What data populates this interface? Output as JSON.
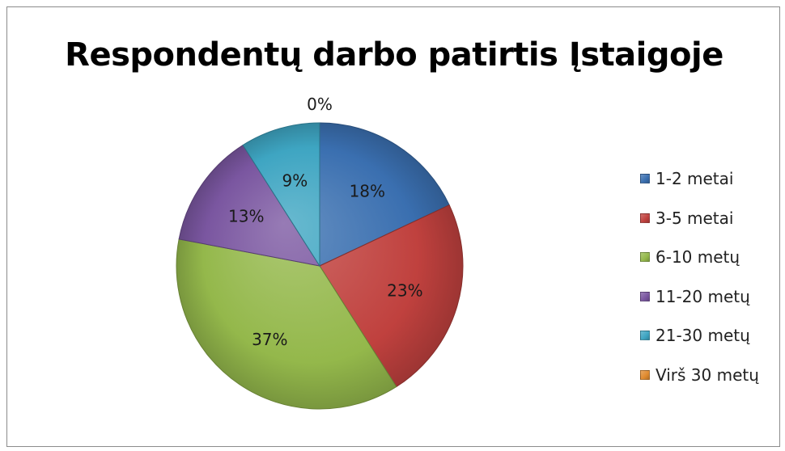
{
  "chart_data": {
    "type": "pie",
    "title": "Respondentų darbo patirtis Įstaigoje",
    "categories": [
      "1-2 metai",
      "3-5 metai",
      "6-10 metų",
      "11-20 metų",
      "21-30 metų",
      "Virš 30 metų"
    ],
    "values": [
      18,
      23,
      37,
      13,
      9,
      0
    ],
    "data_labels": [
      "18%",
      "23%",
      "37%",
      "13%",
      "9%",
      "0%"
    ],
    "colors": [
      "#3a6fb0",
      "#c0413e",
      "#94b84b",
      "#7a56a0",
      "#3ea5c2",
      "#e08a2e"
    ],
    "legend_position": "right"
  }
}
